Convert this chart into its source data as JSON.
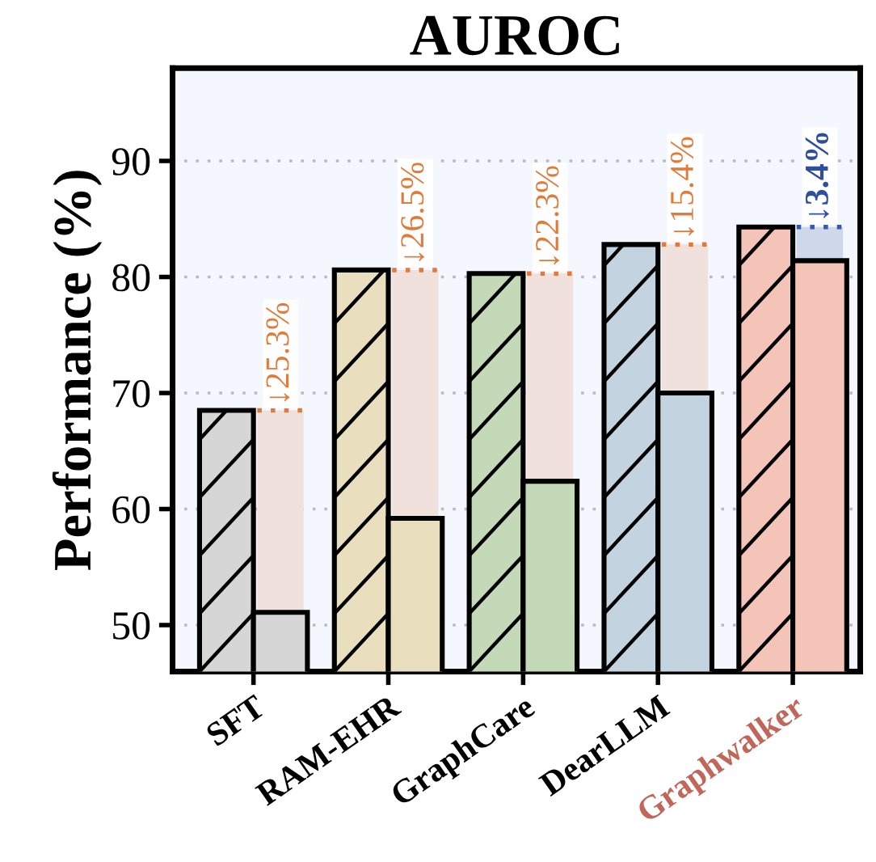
{
  "chart_data": {
    "type": "bar",
    "title": "AUROC",
    "ylabel": "Performance (%)",
    "categories": [
      "SFT",
      "RAM-EHR",
      "GraphCare",
      "DearLLM",
      "Graphwalker"
    ],
    "series": [
      {
        "colors": [
          "#d6d6d6",
          "#e9dfbf",
          "#c3d9b8",
          "#c3d3e0",
          "#f4c4b9"
        ],
        "values": [
          68.5,
          80.6,
          80.3,
          82.8,
          84.3
        ]
      },
      {
        "colors": [
          "#d6d6d6",
          "#e9dfbf",
          "#c3d9b8",
          "#c3d3e0",
          "#f4c4b9"
        ],
        "values": [
          51.1,
          59.2,
          62.4,
          70.0,
          81.4
        ]
      },
      {
        "colors": [
          "#f1e1dc",
          "#f1e1dc",
          "#f1e1dc",
          "#f1e1dc",
          "#cfd8ea"
        ],
        "base": [
          51.1,
          59.2,
          62.4,
          70.0,
          81.4
        ],
        "values": [
          17.4,
          21.4,
          17.9,
          12.8,
          2.9
        ]
      }
    ],
    "annotations": [
      {
        "text": "↓25.3%",
        "x": "SFT",
        "y": 68.5
      },
      {
        "text": "↓26.5%",
        "x": "RAM-EHR",
        "y": 80.6
      },
      {
        "text": "↓22.3%",
        "x": "GraphCare",
        "y": 80.3
      },
      {
        "text": "↓15.4%",
        "x": "DearLLM",
        "y": 82.8
      },
      {
        "text": "↓3.4%",
        "x": "Graphwalker",
        "y": 84.3
      }
    ],
    "ylim": [
      46,
      98
    ],
    "yticks": [
      50,
      60,
      70,
      80,
      90
    ],
    "grid": "y"
  }
}
